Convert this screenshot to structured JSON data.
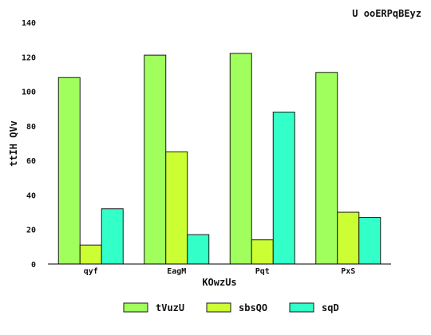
{
  "chart_data": {
    "type": "bar",
    "title": "U ooERPqBEyz",
    "xlabel": "KOwzUs",
    "ylabel": "ttIH QVv",
    "categories": [
      "qyf",
      "EagM",
      "Pqt",
      "PxS"
    ],
    "series": [
      {
        "name": "tVuzU",
        "color": "#a0ff5c",
        "values": [
          108,
          121,
          122,
          111
        ]
      },
      {
        "name": "sbsQO",
        "color": "#ccff33",
        "values": [
          11,
          65,
          14,
          30
        ]
      },
      {
        "name": "sqD",
        "color": "#33ffc8",
        "values": [
          32,
          17,
          88,
          27
        ]
      }
    ],
    "ylim": [
      0,
      140
    ],
    "yticks": [
      0,
      20,
      40,
      60,
      80,
      100,
      120,
      140
    ],
    "grid": false,
    "legend_position": "bottom"
  }
}
